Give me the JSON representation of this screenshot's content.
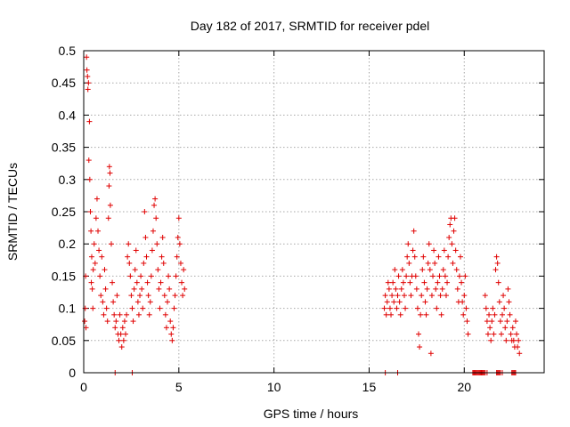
{
  "chart_data": {
    "type": "scatter",
    "title": "Day 182 of 2017, SRMTID for receiver pdel",
    "xlabel": "GPS time / hours",
    "ylabel": "SRMTID / TECUs",
    "xlim": [
      0,
      24.2
    ],
    "ylim": [
      0,
      0.5
    ],
    "x_ticks": [
      0,
      5,
      10,
      15,
      20
    ],
    "x_tick_labels": [
      "0",
      "5",
      "10",
      "15",
      "20"
    ],
    "y_ticks": [
      0,
      0.05,
      0.1,
      0.15,
      0.2,
      0.25,
      0.3,
      0.35,
      0.4,
      0.45,
      0.5
    ],
    "y_tick_labels": [
      "0",
      "0.05",
      "0.1",
      "0.15",
      "0.2",
      "0.25",
      "0.3",
      "0.35",
      "0.4",
      "0.45",
      "0.5"
    ],
    "grid": true,
    "marker": "+",
    "marker_color": "#e00000",
    "series": [
      {
        "name": "SRMTID",
        "points": [
          [
            0.05,
            0.08
          ],
          [
            0.08,
            0.1
          ],
          [
            0.1,
            0.15
          ],
          [
            0.12,
            0.07
          ],
          [
            0.15,
            0.49
          ],
          [
            0.17,
            0.47
          ],
          [
            0.2,
            0.46
          ],
          [
            0.22,
            0.44
          ],
          [
            0.25,
            0.45
          ],
          [
            0.27,
            0.33
          ],
          [
            0.3,
            0.39
          ],
          [
            0.32,
            0.3
          ],
          [
            0.35,
            0.25
          ],
          [
            0.38,
            0.22
          ],
          [
            0.4,
            0.14
          ],
          [
            0.42,
            0.18
          ],
          [
            0.45,
            0.13
          ],
          [
            0.48,
            0.1
          ],
          [
            0.5,
            0.16
          ],
          [
            0.55,
            0.2
          ],
          [
            0.6,
            0.17
          ],
          [
            0.65,
            0.24
          ],
          [
            0.7,
            0.27
          ],
          [
            0.75,
            0.22
          ],
          [
            0.8,
            0.19
          ],
          [
            0.85,
            0.15
          ],
          [
            0.9,
            0.12
          ],
          [
            0.95,
            0.18
          ],
          [
            1.0,
            0.11
          ],
          [
            1.05,
            0.09
          ],
          [
            1.1,
            0.16
          ],
          [
            1.15,
            0.13
          ],
          [
            1.2,
            0.1
          ],
          [
            1.25,
            0.08
          ],
          [
            1.3,
            0.24
          ],
          [
            1.33,
            0.29
          ],
          [
            1.35,
            0.32
          ],
          [
            1.38,
            0.31
          ],
          [
            1.4,
            0.26
          ],
          [
            1.45,
            0.2
          ],
          [
            1.5,
            0.14
          ],
          [
            1.55,
            0.11
          ],
          [
            1.6,
            0.09
          ],
          [
            1.65,
            0.07
          ],
          [
            1.7,
            0.08
          ],
          [
            1.75,
            0.12
          ],
          [
            1.8,
            0.06
          ],
          [
            1.85,
            0.05
          ],
          [
            1.9,
            0.09
          ],
          [
            1.95,
            0.06
          ],
          [
            2.0,
            0.04
          ],
          [
            2.05,
            0.07
          ],
          [
            2.1,
            0.05
          ],
          [
            2.15,
            0.08
          ],
          [
            2.2,
            0.06
          ],
          [
            2.25,
            0.09
          ],
          [
            2.3,
            0.18
          ],
          [
            2.35,
            0.2
          ],
          [
            2.4,
            0.17
          ],
          [
            2.45,
            0.15
          ],
          [
            2.5,
            0.12
          ],
          [
            2.55,
            0.1
          ],
          [
            2.6,
            0.08
          ],
          [
            2.65,
            0.13
          ],
          [
            2.7,
            0.16
          ],
          [
            2.75,
            0.19
          ],
          [
            2.8,
            0.14
          ],
          [
            2.85,
            0.11
          ],
          [
            2.9,
            0.09
          ],
          [
            2.95,
            0.12
          ],
          [
            3.0,
            0.15
          ],
          [
            3.05,
            0.13
          ],
          [
            3.1,
            0.1
          ],
          [
            3.15,
            0.17
          ],
          [
            3.2,
            0.25
          ],
          [
            3.25,
            0.21
          ],
          [
            3.3,
            0.18
          ],
          [
            3.35,
            0.14
          ],
          [
            3.4,
            0.12
          ],
          [
            3.45,
            0.09
          ],
          [
            3.5,
            0.11
          ],
          [
            3.55,
            0.15
          ],
          [
            3.6,
            0.19
          ],
          [
            3.65,
            0.22
          ],
          [
            3.7,
            0.26
          ],
          [
            3.75,
            0.27
          ],
          [
            3.8,
            0.24
          ],
          [
            3.85,
            0.2
          ],
          [
            3.9,
            0.16
          ],
          [
            3.95,
            0.13
          ],
          [
            4.0,
            0.1
          ],
          [
            4.05,
            0.14
          ],
          [
            4.1,
            0.18
          ],
          [
            4.15,
            0.21
          ],
          [
            4.2,
            0.17
          ],
          [
            4.25,
            0.12
          ],
          [
            4.3,
            0.09
          ],
          [
            4.35,
            0.07
          ],
          [
            4.4,
            0.11
          ],
          [
            4.45,
            0.15
          ],
          [
            4.5,
            0.13
          ],
          [
            4.55,
            0.08
          ],
          [
            4.6,
            0.06
          ],
          [
            4.65,
            0.05
          ],
          [
            4.7,
            0.07
          ],
          [
            4.75,
            0.1
          ],
          [
            4.8,
            0.12
          ],
          [
            4.85,
            0.15
          ],
          [
            4.9,
            0.18
          ],
          [
            4.95,
            0.21
          ],
          [
            5.0,
            0.24
          ],
          [
            5.05,
            0.2
          ],
          [
            5.1,
            0.17
          ],
          [
            5.15,
            0.14
          ],
          [
            5.2,
            0.12
          ],
          [
            5.25,
            0.16
          ],
          [
            5.3,
            0.13
          ],
          [
            15.8,
            0.1
          ],
          [
            15.85,
            0.12
          ],
          [
            15.9,
            0.09
          ],
          [
            15.95,
            0.11
          ],
          [
            16.0,
            0.14
          ],
          [
            16.05,
            0.13
          ],
          [
            16.1,
            0.1
          ],
          [
            16.15,
            0.09
          ],
          [
            16.2,
            0.12
          ],
          [
            16.25,
            0.14
          ],
          [
            16.3,
            0.11
          ],
          [
            16.35,
            0.16
          ],
          [
            16.4,
            0.13
          ],
          [
            16.45,
            0.1
          ],
          [
            16.5,
            0.12
          ],
          [
            16.55,
            0.15
          ],
          [
            16.6,
            0.11
          ],
          [
            16.65,
            0.09
          ],
          [
            16.7,
            0.13
          ],
          [
            16.75,
            0.16
          ],
          [
            16.8,
            0.14
          ],
          [
            16.85,
            0.12
          ],
          [
            16.9,
            0.1
          ],
          [
            16.95,
            0.15
          ],
          [
            17.0,
            0.18
          ],
          [
            17.05,
            0.2
          ],
          [
            17.1,
            0.17
          ],
          [
            17.15,
            0.14
          ],
          [
            17.2,
            0.12
          ],
          [
            17.25,
            0.15
          ],
          [
            17.3,
            0.19
          ],
          [
            17.35,
            0.22
          ],
          [
            17.4,
            0.18
          ],
          [
            17.45,
            0.15
          ],
          [
            17.5,
            0.13
          ],
          [
            17.55,
            0.1
          ],
          [
            17.6,
            0.06
          ],
          [
            17.65,
            0.04
          ],
          [
            17.7,
            0.09
          ],
          [
            17.75,
            0.12
          ],
          [
            17.8,
            0.16
          ],
          [
            17.85,
            0.18
          ],
          [
            17.9,
            0.14
          ],
          [
            17.95,
            0.11
          ],
          [
            18.0,
            0.09
          ],
          [
            18.05,
            0.13
          ],
          [
            18.1,
            0.17
          ],
          [
            18.15,
            0.2
          ],
          [
            18.2,
            0.16
          ],
          [
            18.25,
            0.03
          ],
          [
            18.3,
            0.12
          ],
          [
            18.35,
            0.15
          ],
          [
            18.4,
            0.19
          ],
          [
            18.45,
            0.17
          ],
          [
            18.5,
            0.13
          ],
          [
            18.55,
            0.1
          ],
          [
            18.6,
            0.14
          ],
          [
            18.65,
            0.18
          ],
          [
            18.7,
            0.15
          ],
          [
            18.75,
            0.12
          ],
          [
            18.8,
            0.09
          ],
          [
            18.85,
            0.13
          ],
          [
            18.9,
            0.16
          ],
          [
            18.95,
            0.19
          ],
          [
            19.0,
            0.15
          ],
          [
            19.05,
            0.12
          ],
          [
            19.1,
            0.14
          ],
          [
            19.15,
            0.18
          ],
          [
            19.2,
            0.21
          ],
          [
            19.25,
            0.23
          ],
          [
            19.3,
            0.24
          ],
          [
            19.35,
            0.2
          ],
          [
            19.4,
            0.17
          ],
          [
            19.45,
            0.22
          ],
          [
            19.5,
            0.24
          ],
          [
            19.55,
            0.19
          ],
          [
            19.6,
            0.16
          ],
          [
            19.65,
            0.13
          ],
          [
            19.7,
            0.11
          ],
          [
            19.75,
            0.15
          ],
          [
            19.8,
            0.18
          ],
          [
            19.85,
            0.14
          ],
          [
            19.9,
            0.11
          ],
          [
            19.95,
            0.09
          ],
          [
            20.0,
            0.12
          ],
          [
            20.05,
            0.15
          ],
          [
            20.1,
            0.1
          ],
          [
            20.15,
            0.08
          ],
          [
            20.2,
            0.06
          ],
          [
            21.1,
            0.12
          ],
          [
            21.15,
            0.1
          ],
          [
            21.2,
            0.08
          ],
          [
            21.25,
            0.06
          ],
          [
            21.3,
            0.09
          ],
          [
            21.35,
            0.07
          ],
          [
            21.4,
            0.05
          ],
          [
            21.45,
            0.08
          ],
          [
            21.5,
            0.1
          ],
          [
            21.55,
            0.06
          ],
          [
            21.6,
            0.09
          ],
          [
            21.65,
            0.16
          ],
          [
            21.7,
            0.18
          ],
          [
            21.75,
            0.17
          ],
          [
            21.8,
            0.14
          ],
          [
            21.85,
            0.11
          ],
          [
            21.9,
            0.08
          ],
          [
            21.95,
            0.06
          ],
          [
            22.0,
            0.09
          ],
          [
            22.05,
            0.12
          ],
          [
            22.1,
            0.1
          ],
          [
            22.15,
            0.07
          ],
          [
            22.2,
            0.05
          ],
          [
            22.25,
            0.08
          ],
          [
            22.3,
            0.13
          ],
          [
            22.35,
            0.11
          ],
          [
            22.4,
            0.09
          ],
          [
            22.45,
            0.06
          ],
          [
            22.5,
            0.05
          ],
          [
            22.55,
            0.07
          ],
          [
            22.6,
            0.05
          ],
          [
            22.65,
            0.04
          ],
          [
            22.7,
            0.08
          ],
          [
            22.75,
            0.06
          ],
          [
            22.8,
            0.04
          ],
          [
            22.85,
            0.05
          ],
          [
            22.9,
            0.03
          ],
          [
            1.65,
            0
          ],
          [
            2.55,
            0
          ],
          [
            15.85,
            0
          ],
          [
            16.5,
            0
          ],
          [
            20.45,
            0
          ],
          [
            20.5,
            0
          ],
          [
            20.55,
            0
          ],
          [
            20.6,
            0
          ],
          [
            20.65,
            0
          ],
          [
            20.7,
            0
          ],
          [
            20.75,
            0
          ],
          [
            20.8,
            0
          ],
          [
            20.85,
            0
          ],
          [
            20.9,
            0
          ],
          [
            20.95,
            0
          ],
          [
            21.0,
            0
          ],
          [
            21.05,
            0
          ],
          [
            21.1,
            0
          ],
          [
            21.2,
            0
          ],
          [
            21.7,
            0
          ],
          [
            21.75,
            0
          ],
          [
            21.8,
            0
          ],
          [
            21.85,
            0
          ],
          [
            21.9,
            0
          ],
          [
            22.0,
            0
          ],
          [
            22.5,
            0
          ],
          [
            22.55,
            0
          ],
          [
            22.6,
            0
          ],
          [
            22.65,
            0
          ],
          [
            22.7,
            0
          ]
        ]
      }
    ]
  }
}
